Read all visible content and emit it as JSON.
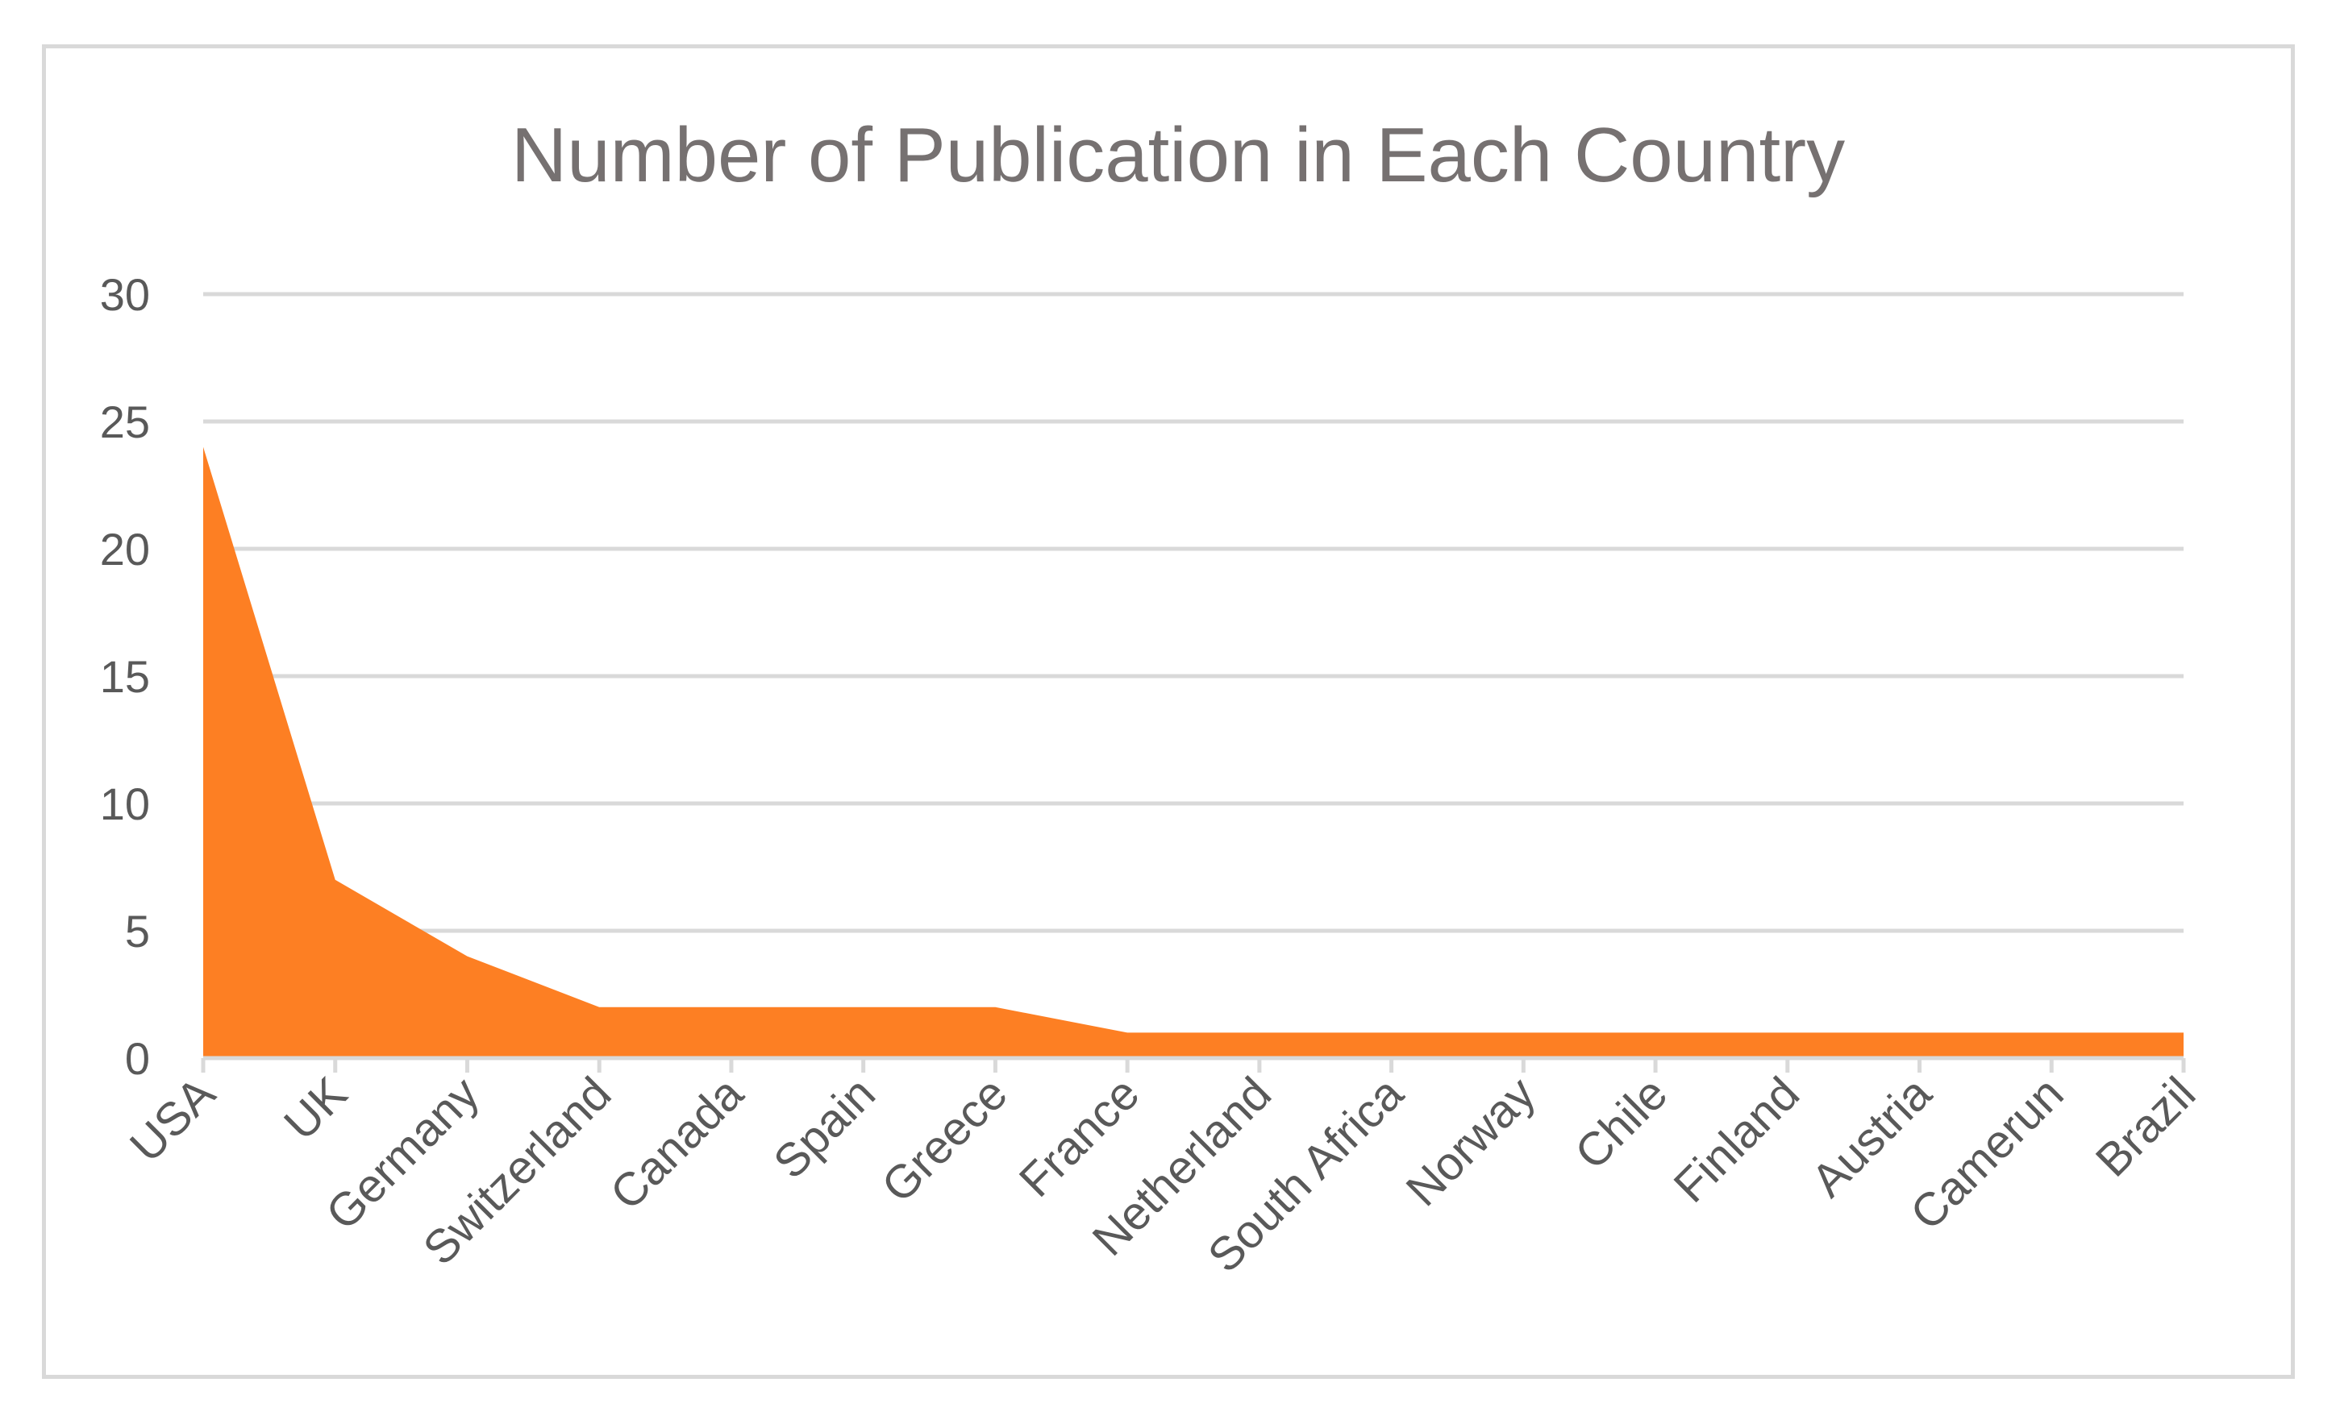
{
  "chart_data": {
    "type": "area",
    "title": "Number of Publication in Each Country",
    "xlabel": "",
    "ylabel": "",
    "categories": [
      "USA",
      "UK",
      "Germany",
      "Switzerland",
      "Canada",
      "Spain",
      "Greece",
      "France",
      "Netherland",
      "South Africa",
      "Norway",
      "Chile",
      "Finland",
      "Austria",
      "Camerun",
      "Brazil"
    ],
    "values": [
      24,
      7,
      4,
      2,
      2,
      2,
      2,
      1,
      1,
      1,
      1,
      1,
      1,
      1,
      1,
      1
    ],
    "ylim": [
      0,
      30
    ],
    "yticks": [
      0,
      5,
      10,
      15,
      20,
      25,
      30
    ],
    "grid": true,
    "legend": "none",
    "colors": {
      "fill": "#FD7F23",
      "grid": "#D9D9D9",
      "axis": "#D9D9D9",
      "text": "#595959",
      "title": "#767171"
    }
  }
}
